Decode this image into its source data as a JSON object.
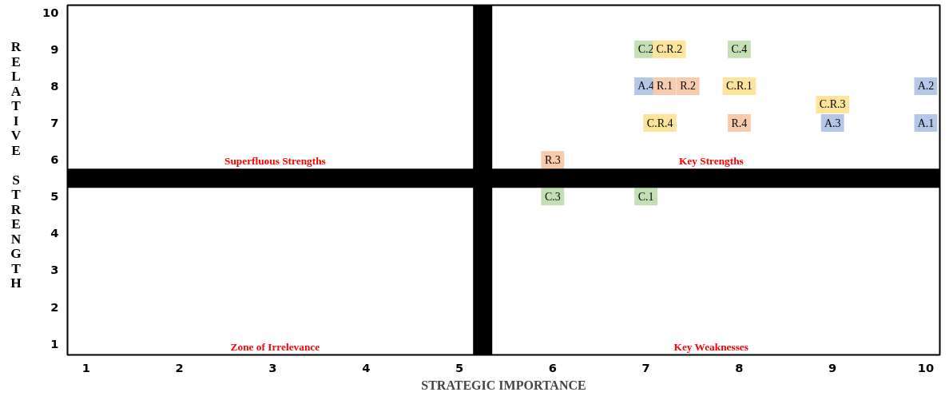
{
  "chart_data": {
    "type": "scatter",
    "xlabel": "STRATEGIC IMPORTANCE",
    "ylabel": "RELATIVE STRENGTH",
    "xlim": [
      0.8,
      10.15
    ],
    "ylim": [
      0.7,
      10.2
    ],
    "xticks": [
      1,
      2,
      3,
      4,
      5,
      6,
      7,
      8,
      9,
      10
    ],
    "yticks": [
      1,
      2,
      3,
      4,
      5,
      6,
      7,
      8,
      9,
      10
    ],
    "grid": false,
    "marker": "square",
    "series": [
      {
        "color": "#c5dfb4",
        "x": [
          7,
          8,
          6,
          7
        ],
        "values": [
          9,
          9,
          5,
          5
        ],
        "value_labels": [
          "C.2",
          "C.4",
          "C.3",
          "C.1"
        ]
      },
      {
        "color": "#fde49b",
        "x": [
          7.25,
          8,
          9,
          7.15
        ],
        "values": [
          9,
          8,
          7.5,
          7
        ],
        "value_labels": [
          "C.R.2",
          "C.R.1",
          "C.R.3",
          "C.R.4"
        ]
      },
      {
        "color": "#b4c7e7",
        "x": [
          7,
          10,
          9,
          10
        ],
        "values": [
          8,
          8,
          7,
          7
        ],
        "value_labels": [
          "A.4",
          "A.2",
          "A.3",
          "A.1"
        ]
      },
      {
        "color": "#f8cbad",
        "x": [
          7.2,
          7.45,
          8,
          6
        ],
        "values": [
          8,
          8,
          7,
          6
        ],
        "value_labels": [
          "R.1",
          "R.2",
          "R.4",
          "R.3"
        ]
      }
    ],
    "ref_lines": [
      {
        "axis": "y",
        "value": 5.5,
        "color": "#000000"
      },
      {
        "axis": "x",
        "value": 5.25,
        "color": "#000000"
      }
    ],
    "annotations": [
      "Superfluous Strengths",
      "Key Strengths",
      "Zone of Irrelevance",
      "Key Weaknesses"
    ]
  }
}
